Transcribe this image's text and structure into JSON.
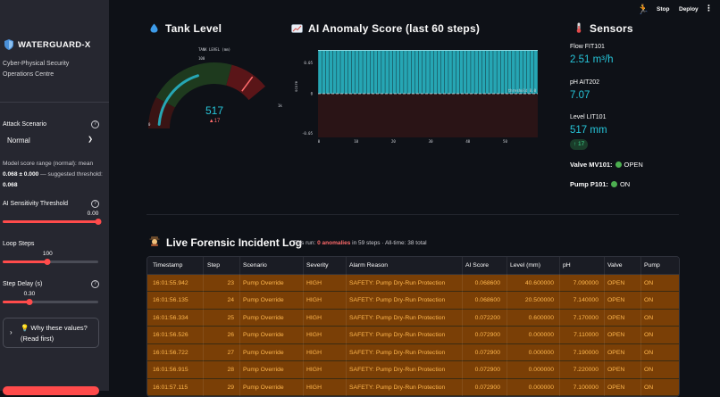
{
  "topbar": {
    "stop_label": "Stop",
    "deploy_label": "Deploy",
    "menu_glyph": "⋮",
    "running_glyph": "🏃"
  },
  "sidebar": {
    "brand": "WATERGUARD-X",
    "subtitle": "Cyber-Physical Security Operations Centre",
    "attack_scenario_label": "Attack Scenario",
    "attack_scenario_value": "Normal",
    "note_prefix": "Model score range (normal): mean ",
    "note_mean": "0.068 ± 0.000",
    "note_mid": " — suggested threshold: ",
    "note_threshold": "0.068",
    "sensitivity_label": "AI Sensitivity Threshold",
    "sensitivity_value": "0.00",
    "sensitivity_fraction": 1.0,
    "loop_steps_label": "Loop Steps",
    "loop_steps_value": "100",
    "loop_steps_fraction": 0.47,
    "step_delay_label": "Step Delay (s)",
    "step_delay_value": "0.30",
    "step_delay_fraction": 0.28,
    "why_line1": "💡 Why these values?",
    "why_line2": "(Read first)",
    "accent": "#ff4b4b"
  },
  "tank": {
    "title": "Tank Level",
    "icon": "droplet-icon",
    "gauge_title": "TANK LEVEL (mm)",
    "value": "517",
    "delta": "▲17",
    "tick_0": "0",
    "tick_100": "100",
    "tick_1k": "1k",
    "min": 0,
    "max": 1000,
    "level": 517
  },
  "anomaly": {
    "title": "AI Anomaly Score (last 60 steps)",
    "icon": "chart-icon",
    "y_axis": "score",
    "threshold_label": "threshold 0.0",
    "bar_color": "#26a6b4",
    "line_color": "#8fd8e0"
  },
  "chart_data": {
    "type": "bar",
    "title": "AI Anomaly Score (last 60 steps)",
    "xlabel": "",
    "ylabel": "score",
    "x_ticks": [
      "0",
      "10",
      "20",
      "30",
      "40",
      "50"
    ],
    "y_ticks": [
      "0.05",
      "0",
      "-0.05"
    ],
    "ylim": [
      -0.05,
      0.05
    ],
    "threshold": 0.0,
    "threshold_label": "threshold 0.0",
    "x": [
      0,
      1,
      2,
      3,
      4,
      5,
      6,
      7,
      8,
      9,
      10,
      11,
      12,
      13,
      14,
      15,
      16,
      17,
      18,
      19,
      20,
      21,
      22,
      23,
      24,
      25,
      26,
      27,
      28,
      29,
      30,
      31,
      32,
      33,
      34,
      35,
      36,
      37,
      38,
      39,
      40,
      41,
      42,
      43,
      44,
      45,
      46,
      47,
      48,
      49,
      50,
      51,
      52,
      53,
      54,
      55,
      56,
      57,
      58
    ],
    "values": [
      0.0686,
      0.0686,
      0.0686,
      0.0686,
      0.0686,
      0.0686,
      0.0686,
      0.0686,
      0.0686,
      0.0686,
      0.0686,
      0.0686,
      0.0686,
      0.0686,
      0.0686,
      0.0686,
      0.0686,
      0.0686,
      0.0686,
      0.0686,
      0.0686,
      0.0686,
      0.0686,
      0.0686,
      0.0686,
      0.0722,
      0.0729,
      0.0729,
      0.0729,
      0.0729,
      0.0729,
      0.0729,
      0.0729,
      0.0729,
      0.0729,
      0.0729,
      0.0729,
      0.0729,
      0.0729,
      0.0729,
      0.0729,
      0.0729,
      0.0729,
      0.0729,
      0.0729,
      0.0729,
      0.0729,
      0.0729,
      0.0729,
      0.0729,
      0.0729,
      0.0729,
      0.0729,
      0.0729,
      0.0729,
      0.0729,
      0.0729,
      0.0729,
      0.0729
    ],
    "grid": true
  },
  "sensors": {
    "title": "Sensors",
    "icon": "thermometer-icon",
    "flow_label": "Flow FIT101",
    "flow_value": "2.51 m³/h",
    "ph_label": "pH AIT202",
    "ph_value": "7.07",
    "level_label": "Level LIT101",
    "level_value": "517 mm",
    "level_delta": "↑ 17",
    "valve_label": "Valve MV101:",
    "valve_state": "OPEN",
    "pump_label": "Pump P101:",
    "pump_state": "ON",
    "value_color": "#26c6da"
  },
  "log": {
    "title": "Live Forensic Incident Log",
    "icon": "detective-icon",
    "sub_prefix": "This run: ",
    "sub_anomalies": "0 anomalies",
    "sub_mid": " in 59 steps · All-time: 38 total",
    "columns": [
      "Timestamp",
      "Step",
      "Scenario",
      "Severity",
      "Alarm Reason",
      "AI Score",
      "Level (mm)",
      "pH",
      "Valve",
      "Pump"
    ],
    "rows": [
      [
        "16:01:55.942",
        "23",
        "Pump Override",
        "HIGH",
        "SAFETY: Pump Dry-Run Protection",
        "0.068600",
        "40.600000",
        "7.090000",
        "OPEN",
        "ON"
      ],
      [
        "16:01:56.135",
        "24",
        "Pump Override",
        "HIGH",
        "SAFETY: Pump Dry-Run Protection",
        "0.068600",
        "20.500000",
        "7.140000",
        "OPEN",
        "ON"
      ],
      [
        "16:01:56.334",
        "25",
        "Pump Override",
        "HIGH",
        "SAFETY: Pump Dry-Run Protection",
        "0.072200",
        "0.600000",
        "7.170000",
        "OPEN",
        "ON"
      ],
      [
        "16:01:56.526",
        "26",
        "Pump Override",
        "HIGH",
        "SAFETY: Pump Dry-Run Protection",
        "0.072900",
        "0.000000",
        "7.110000",
        "OPEN",
        "ON"
      ],
      [
        "16:01:56.722",
        "27",
        "Pump Override",
        "HIGH",
        "SAFETY: Pump Dry-Run Protection",
        "0.072900",
        "0.000000",
        "7.190000",
        "OPEN",
        "ON"
      ],
      [
        "16:01:56.915",
        "28",
        "Pump Override",
        "HIGH",
        "SAFETY: Pump Dry-Run Protection",
        "0.072900",
        "0.000000",
        "7.220000",
        "OPEN",
        "ON"
      ],
      [
        "16:01:57.115",
        "29",
        "Pump Override",
        "HIGH",
        "SAFETY: Pump Dry-Run Protection",
        "0.072900",
        "0.000000",
        "7.100000",
        "OPEN",
        "ON"
      ]
    ],
    "row_bg": "#7a3f06",
    "row_text": "#ffb74d"
  }
}
